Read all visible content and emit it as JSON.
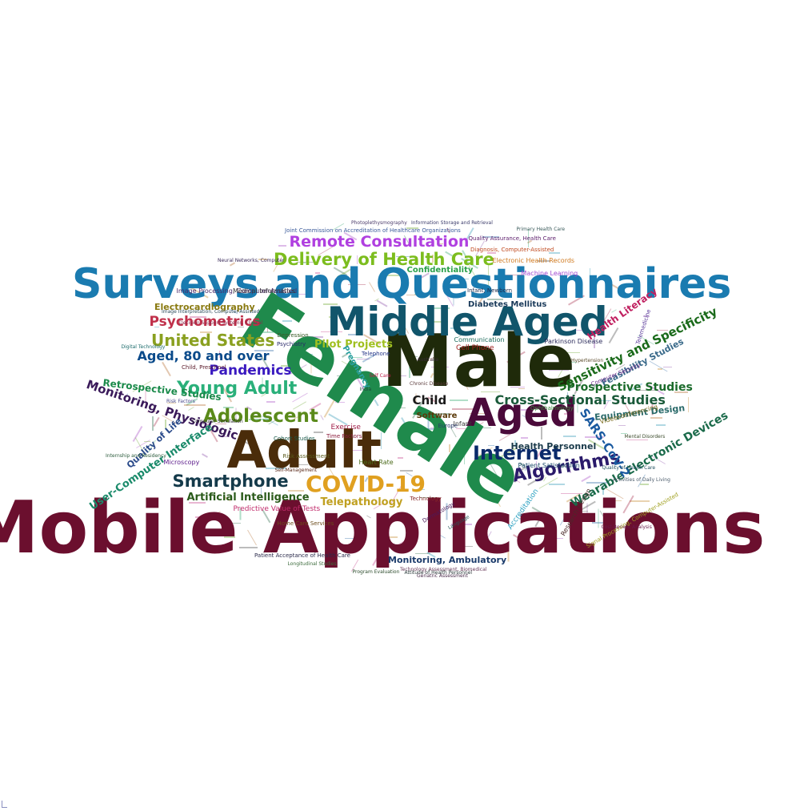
{
  "words": [
    {
      "text": "Mobile Applications",
      "color": "#6b0f2e"
    },
    {
      "text": "Female",
      "color": "#1f8a4c"
    },
    {
      "text": "Male",
      "color": "#1f2a0a"
    },
    {
      "text": "Surveys and Questionnaires",
      "color": "#1a7bb0"
    },
    {
      "text": "Middle Aged",
      "color": "#11556b"
    },
    {
      "text": "Adult",
      "color": "#4a2c0a"
    },
    {
      "text": "Aged",
      "color": "#4a0a3a"
    },
    {
      "text": "COVID-19",
      "color": "#e0a020"
    },
    {
      "text": "Delivery of Health Care",
      "color": "#7cbd1e"
    },
    {
      "text": "Remote Consultation",
      "color": "#b040e0"
    },
    {
      "text": "Adolescent",
      "color": "#5a8a1a"
    },
    {
      "text": "Young Adult",
      "color": "#2ab07a"
    },
    {
      "text": "Smartphone",
      "color": "#143a4a"
    },
    {
      "text": "Internet",
      "color": "#0a2a6a"
    },
    {
      "text": "Algorithms",
      "color": "#2a1a6a"
    },
    {
      "text": "United States",
      "color": "#8aa020"
    },
    {
      "text": "Psychometrics",
      "color": "#c0304a"
    },
    {
      "text": "Pandemics",
      "color": "#3a1ac0"
    },
    {
      "text": "Aged, 80 and over",
      "color": "#0a4a8a"
    },
    {
      "text": "Cross-Sectional Studies",
      "color": "#1a5a3a"
    },
    {
      "text": "Prospective Studies",
      "color": "#1a6a2a"
    },
    {
      "text": "Sensitivity and Specificity",
      "color": "#1a6a1a"
    },
    {
      "text": "Wearable Electronic Devices",
      "color": "#1a6a4a"
    },
    {
      "text": "SARS-CoV-2",
      "color": "#1a5aa0"
    },
    {
      "text": "Monitoring, Physiologic",
      "color": "#3a1a5a"
    },
    {
      "text": "Retrospective Studies",
      "color": "#1a8a4a"
    },
    {
      "text": "User-Computer Interface",
      "color": "#1a8a6a"
    },
    {
      "text": "Quality of Life",
      "color": "#2a4a8a"
    },
    {
      "text": "Artificial Intelligence",
      "color": "#2a5a1a"
    },
    {
      "text": "Telepathology",
      "color": "#c0a020"
    },
    {
      "text": "Child",
      "color": "#1a1a1a"
    },
    {
      "text": "Health Literacy",
      "color": "#c02060"
    },
    {
      "text": "Feasibility Studies",
      "color": "#3a6a8a"
    },
    {
      "text": "Equipment Design",
      "color": "#2a6a6a"
    },
    {
      "text": "Health Personnel",
      "color": "#1a3a4a"
    },
    {
      "text": "Electrocardiography",
      "color": "#8a7a10"
    },
    {
      "text": "Pilot Projects",
      "color": "#a0c020"
    },
    {
      "text": "Confidentiality",
      "color": "#2aa04a"
    },
    {
      "text": "Diabetes Mellitus",
      "color": "#1a3a5a"
    },
    {
      "text": "Software",
      "color": "#5a3a0a"
    },
    {
      "text": "Monitoring, Ambulatory",
      "color": "#1a3a6a"
    },
    {
      "text": "Pregnancy",
      "color": "#2aa0a0"
    },
    {
      "text": "Cell Phone",
      "color": "#a02020"
    },
    {
      "text": "Parkinson Disease",
      "color": "#2a2a5a"
    },
    {
      "text": "Electronic Health Records",
      "color": "#d07a20"
    },
    {
      "text": "Machine Learning",
      "color": "#a04ad0"
    },
    {
      "text": "Predictive Value of Tests",
      "color": "#c02a6a"
    },
    {
      "text": "Telemedicine",
      "color": "#5a3a9a"
    },
    {
      "text": "Image Processing, Computer-Assisted",
      "color": "#4a2a6a"
    },
    {
      "text": "Joint Commission on Accreditation of Healthcare Organizations",
      "color": "#3a5a9a"
    },
    {
      "text": "Quality Assurance, Health Care",
      "color": "#5a1a6a"
    },
    {
      "text": "Diagnosis, Computer-Assisted",
      "color": "#c04a20"
    },
    {
      "text": "Infant, Newborn",
      "color": "#1a2a4a"
    },
    {
      "text": "Exercise",
      "color": "#a0204a"
    },
    {
      "text": "Heart Rate",
      "color": "#4a6a1a"
    },
    {
      "text": "Patient Satisfaction",
      "color": "#1a4a6a"
    },
    {
      "text": "Microscopy",
      "color": "#5a1a8a"
    },
    {
      "text": "Medical Informatics",
      "color": "#3a3a3a"
    },
    {
      "text": "Patient Acceptance of Health Care",
      "color": "#2a2a4a"
    },
    {
      "text": "Accreditation",
      "color": "#2aa0c0"
    },
    {
      "text": "Infant",
      "color": "#3a3a3a"
    },
    {
      "text": "Depression",
      "color": "#3a5a2a"
    },
    {
      "text": "Child, Preschool",
      "color": "#5a1a2a"
    },
    {
      "text": "Communication",
      "color": "#1a6a5a"
    },
    {
      "text": "Europe",
      "color": "#2a3a6a"
    },
    {
      "text": "Ophthalmology",
      "color": "#3a8a3a"
    },
    {
      "text": "Technology",
      "color": "#8a2a2a"
    },
    {
      "text": "Telephone",
      "color": "#2a3a8a"
    },
    {
      "text": "Videoconferencing",
      "color": "#7a6a1a"
    },
    {
      "text": "Computer Security",
      "color": "#6a2a8a"
    },
    {
      "text": "Research Design",
      "color": "#4a2a2a"
    },
    {
      "text": "Psychiatry",
      "color": "#2a2a6a"
    },
    {
      "text": "Risk Assessment",
      "color": "#5a5a1a"
    },
    {
      "text": "Time Factors",
      "color": "#8a1a3a"
    },
    {
      "text": "Self Care",
      "color": "#c0204a"
    },
    {
      "text": "Cohort Studies",
      "color": "#1a5a4a"
    },
    {
      "text": "Home Care Services",
      "color": "#6a4a1a"
    },
    {
      "text": "Program Evaluation",
      "color": "#2a4a2a"
    },
    {
      "text": "Longitudinal Studies",
      "color": "#3a6a3a"
    },
    {
      "text": "Photoplethysmography",
      "color": "#4a3a6a"
    },
    {
      "text": "Information Storage and Retrieval",
      "color": "#3a3a6a"
    },
    {
      "text": "Decision Support Systems, Clinical",
      "color": "#8a2a4a"
    },
    {
      "text": "Image Interpretation, Computer-Assisted",
      "color": "#2a4a5a"
    },
    {
      "text": "Neural Networks, Computer",
      "color": "#3a2a5a"
    },
    {
      "text": "Computer Simulation",
      "color": "#2a2a2a"
    },
    {
      "text": "Self-Management",
      "color": "#5a2a1a"
    },
    {
      "text": "Dermatology",
      "color": "#4a1a5a"
    },
    {
      "text": "Language",
      "color": "#2a5a5a"
    },
    {
      "text": "India",
      "color": "#1a4a3a"
    },
    {
      "text": "Australia",
      "color": "#3a2a3a"
    },
    {
      "text": "Cost-Benefit Analysis",
      "color": "#6a1a4a"
    },
    {
      "text": "Quality of Health Care",
      "color": "#1a4a5a"
    },
    {
      "text": "Activities of Daily Living",
      "color": "#4a5a6a"
    },
    {
      "text": "Mental Disorders",
      "color": "#3a4a2a"
    },
    {
      "text": "Digital Technology",
      "color": "#1a6a6a"
    },
    {
      "text": "Risk Factors",
      "color": "#4a4a8a"
    },
    {
      "text": "Chronic Disease",
      "color": "#5a3a3a"
    },
    {
      "text": "Signal Processing, Computer-Assisted",
      "color": "#a0a020"
    },
    {
      "text": "Technology Assessment, Biomedical",
      "color": "#6a3a5a"
    },
    {
      "text": "Attitude of Health Personnel",
      "color": "#2a3a3a"
    },
    {
      "text": "Geriatric Assessment",
      "color": "#4a2a4a"
    },
    {
      "text": "Internship and Residency",
      "color": "#2a5a3a"
    },
    {
      "text": "Hypertension",
      "color": "#5a4a2a"
    },
    {
      "text": "Primary Health Care",
      "color": "#3a5a5a"
    }
  ],
  "filler": [
    {
      "color": "#a040c0"
    },
    {
      "color": "#20a060"
    },
    {
      "color": "#c08020"
    },
    {
      "color": "#2060a0"
    },
    {
      "color": "#a02040"
    },
    {
      "color": "#60a020"
    },
    {
      "color": "#404040"
    },
    {
      "color": "#2090b0"
    },
    {
      "color": "#8040a0"
    },
    {
      "color": "#b06020"
    },
    {
      "color": "#206040"
    },
    {
      "color": "#c03080"
    }
  ]
}
